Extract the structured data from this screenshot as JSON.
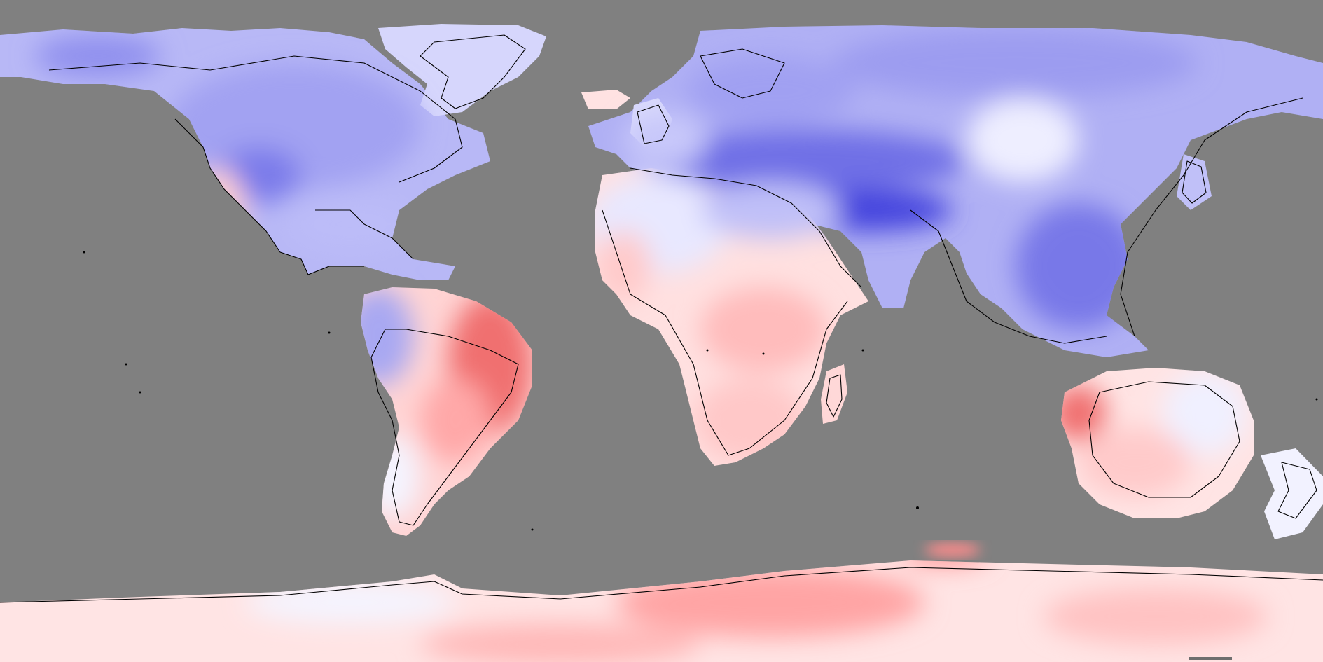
{
  "map": {
    "type": "global temperature anomaly map",
    "projection": "equirectangular",
    "background_color": "#808080",
    "colors": {
      "ocean_masked": "#808080",
      "cold_strong": "#4848e0",
      "cold_mid": "#8c8cf0",
      "cold_light": "#c4c4fa",
      "neutral": "#f4f4ff",
      "warm_light": "#ffd8d8",
      "warm_mid": "#ffa8a8",
      "warm_strong": "#f06868",
      "coastline": "#000000"
    },
    "regions": [
      {
        "name": "north-america",
        "anomaly": "cold"
      },
      {
        "name": "greenland",
        "anomaly": "slightly-cold"
      },
      {
        "name": "europe-asia",
        "anomaly": "cold"
      },
      {
        "name": "himalaya-tibet",
        "anomaly": "strongly-cold"
      },
      {
        "name": "africa-south",
        "anomaly": "warm"
      },
      {
        "name": "south-america-east",
        "anomaly": "warm"
      },
      {
        "name": "south-america-west",
        "anomaly": "cold"
      },
      {
        "name": "australia",
        "anomaly": "slightly-warm"
      },
      {
        "name": "antarctica",
        "anomaly": "warm"
      }
    ]
  }
}
